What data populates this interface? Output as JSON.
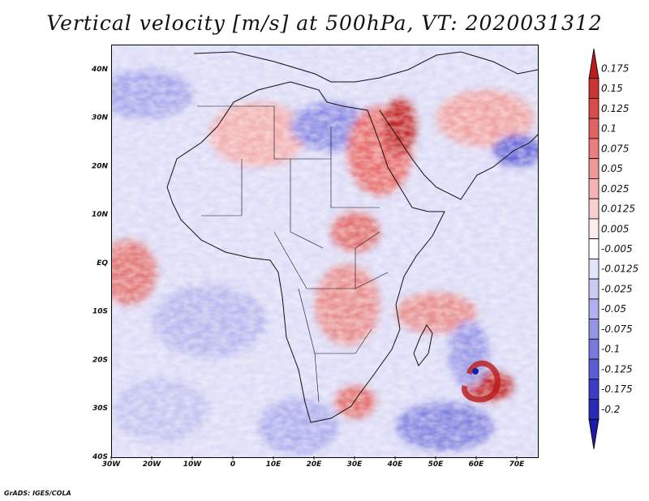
{
  "title": "Vertical velocity [m/s] at 500hPa, VT: 2020031312",
  "credit": "GrADS: IGES/COLA",
  "map": {
    "variable": "Vertical velocity",
    "units": "m/s",
    "level": "500hPa",
    "valid_time": "2020031312",
    "lon_range": [
      -30,
      75
    ],
    "lat_range": [
      -40,
      45
    ],
    "x_ticks": [
      "30W",
      "20W",
      "10W",
      "0",
      "10E",
      "20E",
      "30E",
      "40E",
      "50E",
      "60E",
      "70E"
    ],
    "y_ticks": [
      "40N",
      "30N",
      "20N",
      "10N",
      "EQ",
      "10S",
      "20S",
      "30S",
      "40S"
    ]
  },
  "colorbar": {
    "labels": [
      "0.175",
      "0.15",
      "0.125",
      "0.1",
      "0.075",
      "0.05",
      "0.025",
      "0.0125",
      "0.005",
      "-0.005",
      "-0.0125",
      "-0.025",
      "-0.05",
      "-0.075",
      "-0.1",
      "-0.125",
      "-0.175",
      "-0.2"
    ],
    "colors": [
      "#b81c1c",
      "#cc3333",
      "#d94a4a",
      "#e26262",
      "#ea7d7d",
      "#f09898",
      "#f5b4b4",
      "#f9d0d0",
      "#fcebeb",
      "#ffffff",
      "#e4e4f8",
      "#cacaf3",
      "#b0b0ee",
      "#9595e6",
      "#7a7ade",
      "#5c5cd4",
      "#3c3cc7",
      "#2a2ab8",
      "#1c1ca8"
    ]
  }
}
